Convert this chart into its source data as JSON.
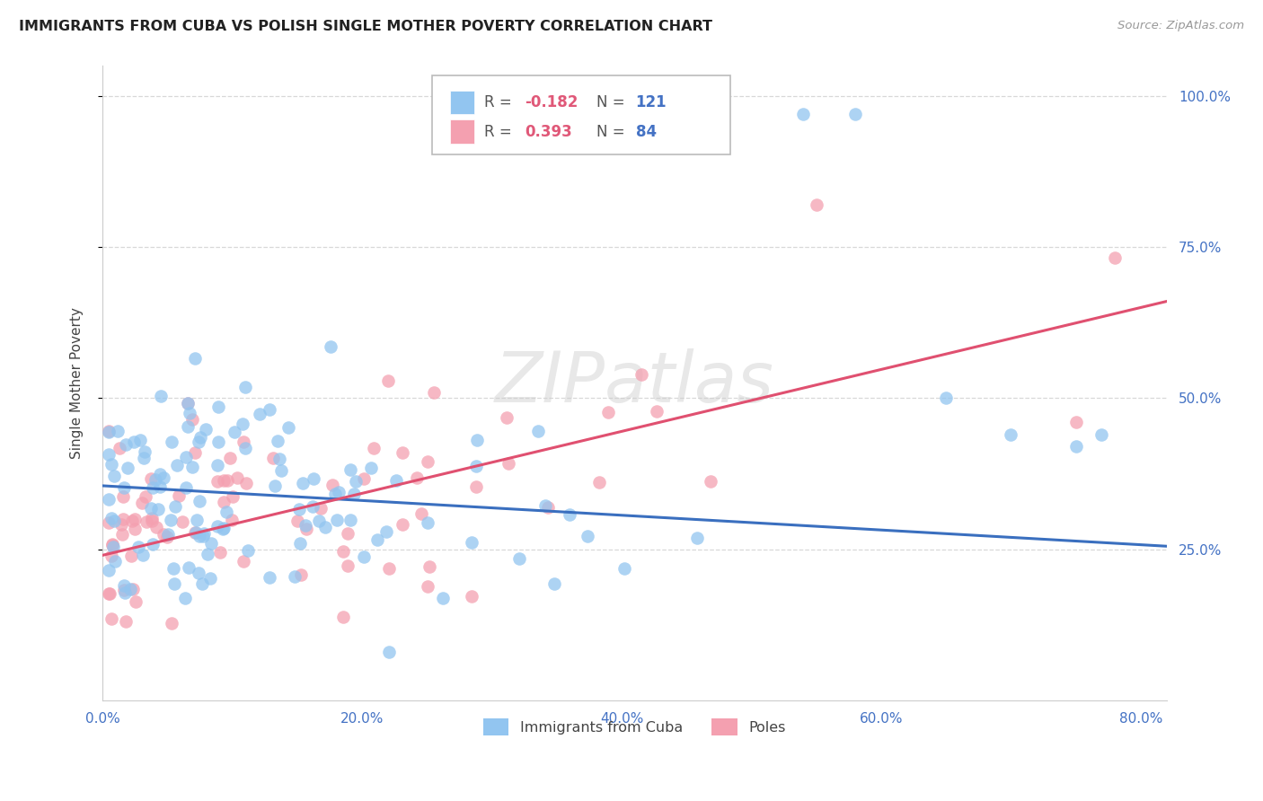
{
  "title": "IMMIGRANTS FROM CUBA VS POLISH SINGLE MOTHER POVERTY CORRELATION CHART",
  "source": "Source: ZipAtlas.com",
  "ylabel": "Single Mother Poverty",
  "xlim": [
    0.0,
    0.82
  ],
  "ylim": [
    0.0,
    1.05
  ],
  "cuba_R": -0.182,
  "cuba_N": 121,
  "poles_R": 0.393,
  "poles_N": 84,
  "cuba_color": "#92C5F0",
  "poles_color": "#F4A0B0",
  "cuba_line_color": "#3a6fbf",
  "poles_line_color": "#e05070",
  "background_color": "#ffffff",
  "watermark": "ZIPatlas",
  "legend_label_cuba": "Immigrants from Cuba",
  "legend_label_poles": "Poles",
  "cuba_trendline": {
    "x_start": 0.0,
    "y_start": 0.355,
    "x_end": 0.82,
    "y_end": 0.255
  },
  "poles_trendline": {
    "x_start": 0.0,
    "y_start": 0.24,
    "x_end": 0.82,
    "y_end": 0.66
  },
  "grid_color": "#d8d8d8",
  "title_fontsize": 11.5,
  "axis_label_fontsize": 11,
  "tick_fontsize": 11,
  "dot_size": 110
}
